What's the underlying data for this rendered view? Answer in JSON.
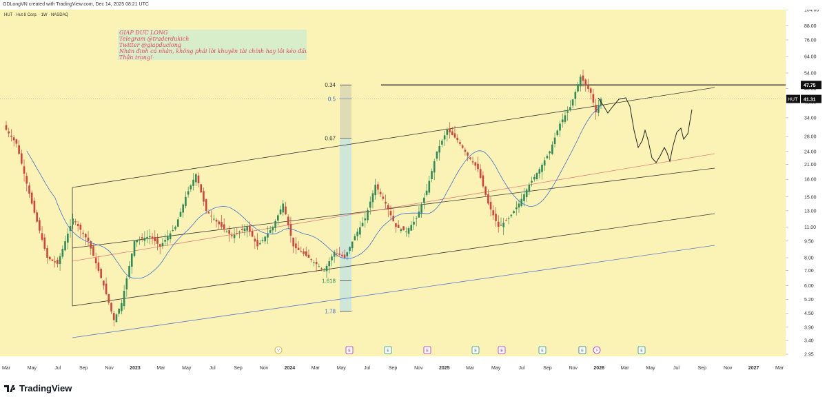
{
  "header": {
    "attribution": "GDLongVN created with TradingView.com, Dec 14, 2025 08:21 UTC",
    "symbol_info": "HUT · Hut 8 Corp. · 1W · NASDAQ"
  },
  "note": {
    "lines": [
      "GIÁP ĐỨC LONG",
      "Telegram @traderdukich",
      "Twitter @giapduclong",
      "Nhận định cá nhân, không phải lời khuyên tài chính hay lôi kéo đầu tư",
      "Thận trọng!"
    ]
  },
  "branding": {
    "name": "TradingView"
  },
  "colors": {
    "background": "#fbf3b5",
    "up": "#2e8b57",
    "down": "#d4413b",
    "channel": "#333333",
    "midline": "#e07a7a",
    "lower_line": "#5a78c8",
    "ma": "#3b6fd4",
    "fib_band": "#c9e6dc",
    "fib_band_top": "#d8d5b2"
  },
  "chart_data": {
    "type": "candlestick",
    "symbol": "HUT",
    "scale": "log",
    "y_axis_ticks": [
      "104.00",
      "88.00",
      "76.00",
      "64.00",
      "54.00",
      "46.00",
      "40.00",
      "34.00",
      "28.00",
      "24.00",
      "21.00",
      "18.00",
      "15.00",
      "13.00",
      "11.00",
      "9.50",
      "8.00",
      "7.00",
      "6.00",
      "5.20",
      "4.50",
      "3.90",
      "3.40",
      "2.95"
    ],
    "x_axis_ticks": [
      "Mar",
      "May",
      "Jul",
      "Sep",
      "Nov",
      "2023",
      "Mar",
      "May",
      "Jul",
      "Sep",
      "Nov",
      "2024",
      "Mar",
      "May",
      "Jul",
      "Sep",
      "Nov",
      "2025",
      "Mar",
      "May",
      "Jul",
      "Sep",
      "Nov",
      "2026",
      "Mar",
      "May",
      "Jul",
      "Sep",
      "Nov",
      "2027",
      "Mar"
    ],
    "price_labels": [
      {
        "label": "47.75",
        "value": 47.75,
        "style": "resistance"
      },
      {
        "symbol": "HUT",
        "label": "41.31",
        "value": 41.31,
        "style": "last"
      }
    ],
    "fib_levels": [
      {
        "label": "0.34",
        "value": 47.75
      },
      {
        "label": "0.5",
        "value": 41.31
      },
      {
        "label": "0.67",
        "value": 27.5
      },
      {
        "label": "1.618",
        "value": 6.3
      },
      {
        "label": "1.78",
        "value": 4.6
      }
    ],
    "event_markers": [
      "V",
      "E",
      "E",
      "E",
      "E",
      "E",
      "E",
      "E",
      "E",
      "lightning",
      "E"
    ],
    "resistance_line": 47.75,
    "last_price": 41.31
  }
}
